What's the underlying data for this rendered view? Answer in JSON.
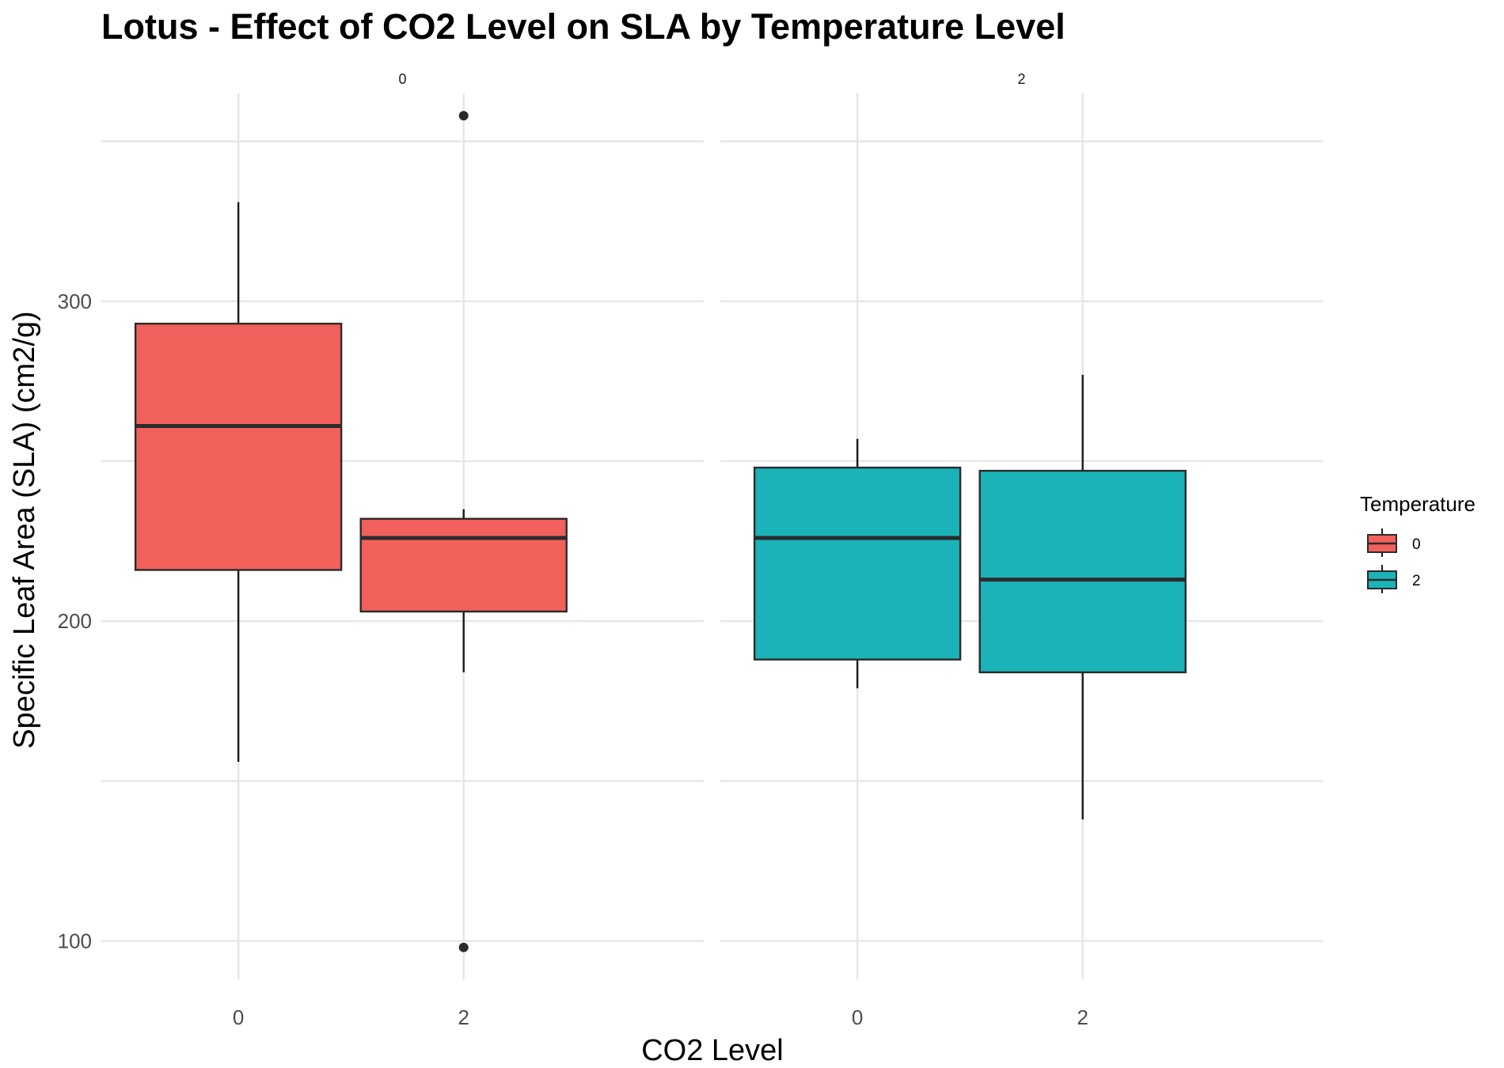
{
  "chart_data": {
    "type": "boxplot",
    "title": "Lotus - Effect of CO2 Level on SLA by Temperature Level",
    "xlabel": "CO2 Level",
    "ylabel": "Specific Leaf Area (SLA) (cm2/g)",
    "ylim": [
      88,
      365
    ],
    "yticks": [
      100,
      200,
      300
    ],
    "categories": [
      "0",
      "2"
    ],
    "grid": true,
    "legend": {
      "title": "Temperature",
      "position": "right",
      "entries": [
        {
          "label": "0",
          "color": "#F2605C"
        },
        {
          "label": "2",
          "color": "#1AB3B8"
        }
      ]
    },
    "facets": [
      {
        "label": "0",
        "color": "#F2605C",
        "boxes": [
          {
            "x": "0",
            "whisker_low": 156,
            "q1": 216,
            "median": 261,
            "q3": 293,
            "whisker_high": 331,
            "outliers": []
          },
          {
            "x": "2",
            "whisker_low": 184,
            "q1": 203,
            "median": 226,
            "q3": 232,
            "whisker_high": 235,
            "outliers": [
              358,
              98
            ]
          }
        ]
      },
      {
        "label": "2",
        "color": "#1AB3B8",
        "boxes": [
          {
            "x": "0",
            "whisker_low": 179,
            "q1": 188,
            "median": 226,
            "q3": 248,
            "whisker_high": 257,
            "outliers": []
          },
          {
            "x": "2",
            "whisker_low": 138,
            "q1": 184,
            "median": 213,
            "q3": 247,
            "whisker_high": 277,
            "outliers": []
          }
        ]
      }
    ]
  }
}
